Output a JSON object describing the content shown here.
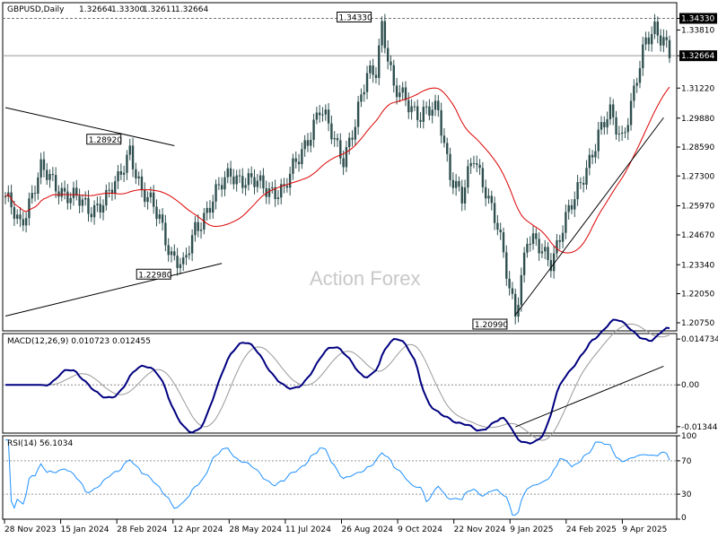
{
  "chart_data": {
    "type": "candlestick",
    "symbol": "GBPUSD,Daily",
    "ohlc": [
      "1.32664",
      "1.33300",
      "1.32611",
      "1.32664"
    ],
    "watermark": "Action Forex",
    "price_axis": {
      "ylim": [
        1.2039,
        1.3503
      ],
      "ticks": [
        "1.34330",
        "1.33810",
        "1.32664",
        "1.31220",
        "1.29880",
        "1.28590",
        "1.27300",
        "1.25970",
        "1.24670",
        "1.23340",
        "1.22050",
        "1.20750"
      ],
      "highlight": [
        "1.34330",
        "1.32664"
      ]
    },
    "x_ticks": [
      "28 Nov 2023",
      "15 Jan 2024",
      "28 Feb 2024",
      "12 Apr 2024",
      "28 May 2024",
      "11 Jul 2024",
      "26 Aug 2024",
      "9 Oct 2024",
      "22 Nov 2024",
      "9 Jan 2025",
      "24 Feb 2025",
      "9 Apr 2025"
    ],
    "price_labels": [
      {
        "text": "1.34330",
        "index": 127,
        "value": 1.3433
      },
      {
        "text": "1.28920",
        "index": 42,
        "value": 1.2892
      },
      {
        "text": "1.22980",
        "index": 60,
        "value": 1.2298
      },
      {
        "text": "1.20990",
        "index": 171,
        "value": 1.2099
      }
    ],
    "series_ma": {
      "color": "#dd0000",
      "period": "SMA"
    },
    "trendlines": [
      {
        "from": [
          0,
          1.3035
        ],
        "to": [
          57,
          1.2865
        ]
      },
      {
        "from": [
          0,
          1.2105
        ],
        "to": [
          73,
          1.234
        ]
      },
      {
        "from": [
          172,
          1.211
        ],
        "to": [
          222,
          1.299
        ]
      }
    ],
    "macd": {
      "label": "MACD(12,26,9) 0.010723 0.012455",
      "ticks": [
        "0.014734",
        "0.00",
        "-0.013442"
      ],
      "ylim": [
        -0.0155,
        0.0165
      ]
    },
    "rsi": {
      "label": "RSI(14) 56.1034",
      "ticks": [
        "100",
        "70",
        "30",
        "0"
      ],
      "ylim": [
        0,
        100
      ]
    },
    "colors": {
      "candle": "#2f4f4f",
      "ma": "#dd0000",
      "macd": "#000080",
      "signal": "#999999",
      "rsi": "#1e90ff"
    }
  }
}
